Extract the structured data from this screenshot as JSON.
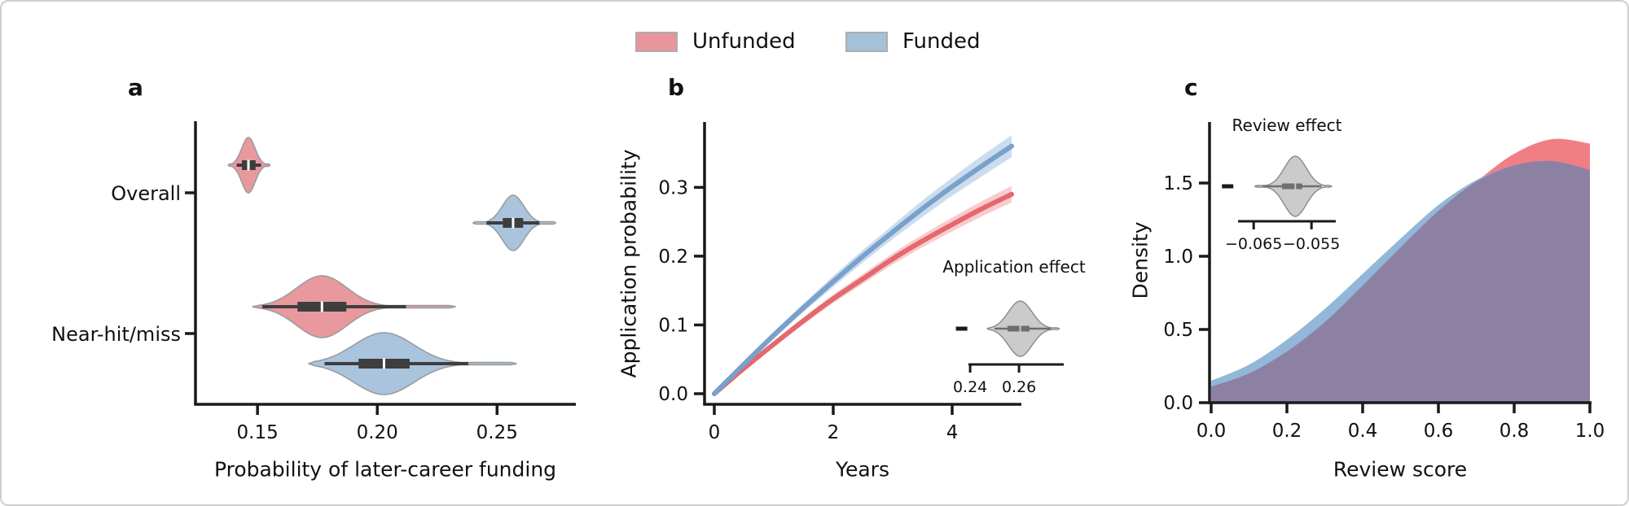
{
  "legend": {
    "items": [
      {
        "label": "Unfunded",
        "color": "#E8959B"
      },
      {
        "label": "Funded",
        "color": "#A5C1DA"
      }
    ]
  },
  "panels": {
    "a": {
      "letter": "a",
      "xlabel": "Probability of later-career funding"
    },
    "b": {
      "letter": "b",
      "xlabel": "Years",
      "ylabel": "Application probability",
      "inset_title": "Application effect"
    },
    "c": {
      "letter": "c",
      "xlabel": "Review score",
      "ylabel": "Density",
      "inset_title": "Review effect"
    }
  },
  "chart_data": [
    {
      "id": "a",
      "type": "violin",
      "orientation": "horizontal",
      "title": "a",
      "xlabel": "Probability of later-career funding",
      "xlim": [
        0.124,
        0.283
      ],
      "x_ticks": [
        {
          "v": 0.15,
          "label": "0.15"
        },
        {
          "v": 0.2,
          "label": "0.20"
        },
        {
          "v": 0.25,
          "label": "0.25"
        }
      ],
      "y_categories": [
        {
          "label": "Overall"
        },
        {
          "label": "Near-hit/miss"
        }
      ],
      "violins": [
        {
          "category": "Overall",
          "series": "Unfunded",
          "color": "#E9989E",
          "median": 0.1462,
          "q1": 0.1435,
          "q3": 0.1492,
          "whisker_lo": 0.1413,
          "whisker_hi": 0.1515,
          "range_lo": 0.1378,
          "range_hi": 0.1552,
          "sd": 0.0028
        },
        {
          "category": "Overall",
          "series": "Funded",
          "color": "#A9C4DC",
          "median": 0.2567,
          "q1": 0.2524,
          "q3": 0.2609,
          "whisker_lo": 0.2456,
          "whisker_hi": 0.2677,
          "range_lo": 0.24,
          "range_hi": 0.2745,
          "sd": 0.0045
        },
        {
          "category": "Near-hit/miss",
          "series": "Unfunded",
          "color": "#E9989E",
          "median": 0.1769,
          "q1": 0.1667,
          "q3": 0.1871,
          "whisker_lo": 0.152,
          "whisker_hi": 0.212,
          "range_lo": 0.148,
          "range_hi": 0.2325,
          "sd": 0.0105
        },
        {
          "category": "Near-hit/miss",
          "series": "Funded",
          "color": "#A9C4DC",
          "median": 0.2028,
          "q1": 0.1922,
          "q3": 0.2135,
          "whisker_lo": 0.178,
          "whisker_hi": 0.238,
          "range_lo": 0.1714,
          "range_hi": 0.258,
          "sd": 0.0125
        }
      ]
    },
    {
      "id": "b",
      "type": "line",
      "title": "b",
      "xlabel": "Years",
      "ylabel": "Application probability",
      "xlim": [
        -0.16,
        5.16
      ],
      "ylim": [
        -0.015,
        0.395
      ],
      "x_ticks": [
        {
          "v": 0,
          "label": "0"
        },
        {
          "v": 2,
          "label": "2"
        },
        {
          "v": 4,
          "label": "4"
        }
      ],
      "y_ticks": [
        {
          "v": 0.0,
          "label": "0.0"
        },
        {
          "v": 0.1,
          "label": "0.1"
        },
        {
          "v": 0.2,
          "label": "0.2"
        },
        {
          "v": 0.3,
          "label": "0.3"
        }
      ],
      "x": [
        0,
        0.5,
        1,
        1.5,
        2,
        2.5,
        3,
        3.5,
        4,
        4.5,
        5
      ],
      "series": [
        {
          "name": "Unfunded",
          "color": "#E4696E",
          "band_color": "#F8CCCD",
          "y": [
            0,
            0.037,
            0.072,
            0.106,
            0.138,
            0.167,
            0.196,
            0.222,
            0.246,
            0.269,
            0.29
          ],
          "band": [
            0.002,
            0.003,
            0.004,
            0.005,
            0.006,
            0.007,
            0.008,
            0.009,
            0.01,
            0.011,
            0.012
          ]
        },
        {
          "name": "Funded",
          "color": "#78A1CB",
          "band_color": "#CBDCEE",
          "y": [
            0,
            0.043,
            0.085,
            0.125,
            0.163,
            0.2,
            0.235,
            0.269,
            0.301,
            0.331,
            0.36
          ],
          "band": [
            0.002,
            0.003,
            0.005,
            0.006,
            0.008,
            0.009,
            0.01,
            0.012,
            0.013,
            0.015,
            0.016
          ]
        }
      ],
      "inset": {
        "title": "Application effect",
        "xlim": [
          0.2393,
          0.2783
        ],
        "x_ticks": [
          {
            "v": 0.24,
            "label": "0.24"
          },
          {
            "v": 0.26,
            "label": "0.26"
          }
        ],
        "violin": {
          "color": "#CBCBCB",
          "median": 0.2605,
          "q1": 0.2553,
          "q3": 0.2643,
          "whisker_lo": 0.25,
          "whisker_hi": 0.273,
          "range_lo": 0.247,
          "range_hi": 0.2765,
          "sd": 0.0048
        },
        "marker_v": 0.2365
      }
    },
    {
      "id": "c",
      "type": "area-density",
      "title": "c",
      "xlabel": "Review score",
      "ylabel": "Density",
      "xlim": [
        0.0,
        1.0
      ],
      "ylim": [
        0.0,
        1.92
      ],
      "x_ticks": [
        {
          "v": 0.0,
          "label": "0.0"
        },
        {
          "v": 0.2,
          "label": "0.2"
        },
        {
          "v": 0.4,
          "label": "0.4"
        },
        {
          "v": 0.6,
          "label": "0.6"
        },
        {
          "v": 0.8,
          "label": "0.8"
        },
        {
          "v": 1.0,
          "label": "1.0"
        }
      ],
      "y_ticks": [
        {
          "v": 0.0,
          "label": "0.0"
        },
        {
          "v": 0.5,
          "label": "0.5"
        },
        {
          "v": 1.0,
          "label": "1.0"
        },
        {
          "v": 1.5,
          "label": "1.5"
        }
      ],
      "x": [
        0,
        0.1,
        0.2,
        0.3,
        0.4,
        0.5,
        0.6,
        0.7,
        0.8,
        0.9,
        1.0
      ],
      "series": [
        {
          "name": "Unfunded",
          "color": "#F17E85",
          "y": [
            0.11,
            0.2,
            0.35,
            0.55,
            0.8,
            1.06,
            1.31,
            1.51,
            1.7,
            1.8,
            1.77
          ]
        },
        {
          "name": "Funded",
          "color": "#92B7D8",
          "y": [
            0.15,
            0.26,
            0.43,
            0.64,
            0.88,
            1.12,
            1.35,
            1.52,
            1.62,
            1.65,
            1.59
          ]
        }
      ],
      "overlap_color": "#8D81A3",
      "inset": {
        "title": "Review effect",
        "xlim": [
          -0.0677,
          -0.0508
        ],
        "x_ticks": [
          {
            "v": -0.065,
            "label": "−0.065"
          },
          {
            "v": -0.055,
            "label": "−0.055"
          }
        ],
        "violin": {
          "color": "#CBCBCB",
          "median": -0.0578,
          "q1": -0.0601,
          "q3": -0.0566,
          "whisker_lo": -0.0634,
          "whisker_hi": -0.0533,
          "range_lo": -0.0648,
          "range_hi": -0.0515,
          "sd": 0.0019
        },
        "marker_v": -0.0695
      }
    }
  ]
}
